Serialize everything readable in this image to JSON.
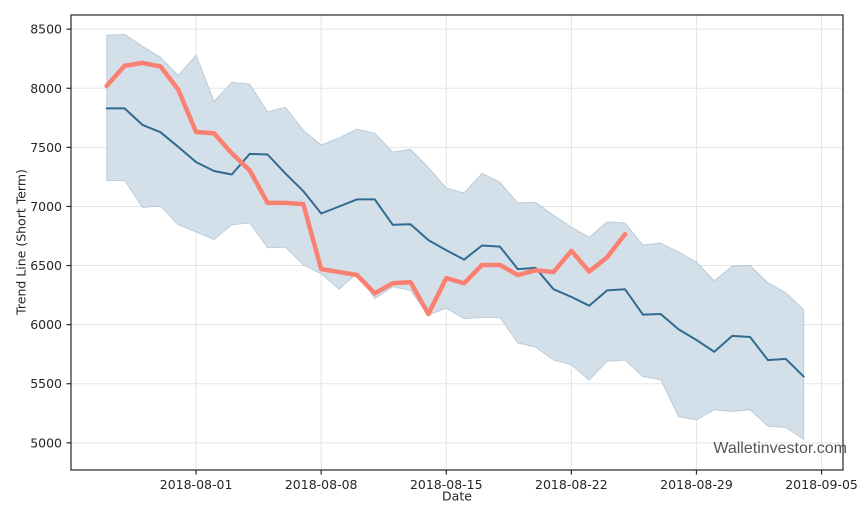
{
  "chart_data": {
    "type": "line",
    "title": "",
    "xlabel": "Date",
    "ylabel": "Trend Line (Short Term)",
    "watermark": "Walletinvestor.com",
    "grid": true,
    "legend_position": "none",
    "x_tick_labels": [
      "2018-08-01",
      "2018-08-08",
      "2018-08-15",
      "2018-08-22",
      "2018-08-29",
      "2018-09-05"
    ],
    "x_tick_days": [
      7,
      14,
      21,
      28,
      35,
      42
    ],
    "y_ticks": [
      5000,
      5500,
      6000,
      6500,
      7000,
      7500,
      8000,
      8500
    ],
    "xlim_days_since_2018_07_25": [
      0,
      43.2
    ],
    "ylim": [
      4770,
      8620
    ],
    "dates": [
      "2018-07-27",
      "2018-07-28",
      "2018-07-29",
      "2018-07-30",
      "2018-07-31",
      "2018-08-01",
      "2018-08-02",
      "2018-08-03",
      "2018-08-04",
      "2018-08-05",
      "2018-08-06",
      "2018-08-07",
      "2018-08-08",
      "2018-08-09",
      "2018-08-10",
      "2018-08-11",
      "2018-08-12",
      "2018-08-13",
      "2018-08-14",
      "2018-08-15",
      "2018-08-16",
      "2018-08-17",
      "2018-08-18",
      "2018-08-19",
      "2018-08-20",
      "2018-08-21",
      "2018-08-22",
      "2018-08-23",
      "2018-08-24",
      "2018-08-25",
      "2018-08-26",
      "2018-08-27",
      "2018-08-28",
      "2018-08-29",
      "2018-08-30",
      "2018-08-31",
      "2018-09-01",
      "2018-09-02",
      "2018-09-03",
      "2018-09-04"
    ],
    "start_day_offset": 2,
    "series": [
      {
        "name": "forecast-trend-line",
        "color": "#2f6b8f",
        "width": 2,
        "values": [
          7830,
          7830,
          7690,
          7628,
          7505,
          7375,
          7300,
          7270,
          7445,
          7440,
          7280,
          7130,
          6940,
          7000,
          7060,
          7060,
          6845,
          6850,
          6715,
          6630,
          6550,
          6670,
          6660,
          6470,
          6480,
          6300,
          6235,
          6160,
          6290,
          6300,
          6085,
          6090,
          5960,
          5870,
          5770,
          5905,
          5895,
          5700,
          5710,
          5560
        ]
      },
      {
        "name": "actual-price-line",
        "color": "#fa8072",
        "width": 4.5,
        "values": [
          8020,
          8190,
          8215,
          8185,
          7990,
          7630,
          7620,
          7450,
          7305,
          7030,
          7030,
          7020,
          6470,
          6445,
          6420,
          6265,
          6350,
          6360,
          6090,
          6395,
          6350,
          6505,
          6505,
          6420,
          6460,
          6445,
          6625,
          6450,
          6570,
          6765
        ]
      }
    ],
    "band": {
      "name": "forecast-confidence-band",
      "fill": "#d4e0e9",
      "edge": "rgba(90,130,160,0.30)",
      "upper": [
        8448,
        8456,
        8355,
        8262,
        8110,
        8280,
        7890,
        8050,
        8035,
        7800,
        7840,
        7645,
        7520,
        7580,
        7655,
        7620,
        7460,
        7485,
        7330,
        7155,
        7115,
        7280,
        7205,
        7030,
        7035,
        6925,
        6825,
        6740,
        6870,
        6860,
        6675,
        6690,
        6615,
        6530,
        6370,
        6495,
        6500,
        6355,
        6270,
        6125
      ],
      "lower": [
        7220,
        7220,
        6990,
        7005,
        6845,
        6785,
        6720,
        6845,
        6860,
        6650,
        6655,
        6505,
        6430,
        6300,
        6435,
        6220,
        6320,
        6290,
        6080,
        6140,
        6050,
        6060,
        6060,
        5845,
        5810,
        5700,
        5660,
        5530,
        5690,
        5700,
        5560,
        5535,
        5220,
        5195,
        5280,
        5265,
        5280,
        5140,
        5130,
        5030
      ]
    },
    "style": {
      "grid_color": "#e5e5e5",
      "spine_color": "#262626",
      "tick_label_color": "#262626",
      "background": "#ffffff"
    }
  }
}
